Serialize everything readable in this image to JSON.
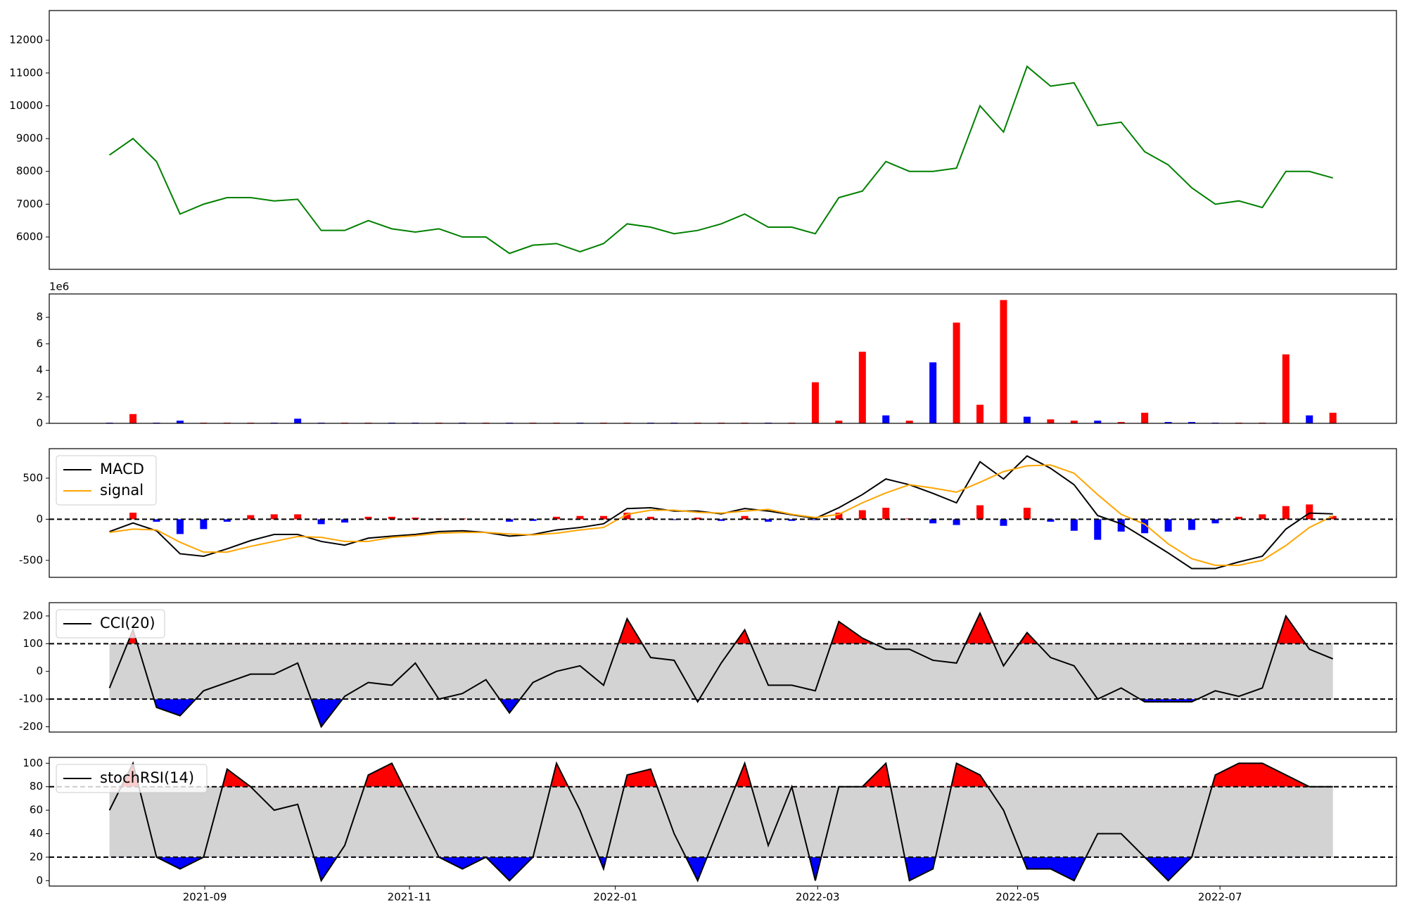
{
  "chart_data": [
    {
      "type": "line",
      "color": "green",
      "xlim": [
        -2.56,
        54.7
      ],
      "ylim": [
        5014,
        12904
      ],
      "yticks": [
        6000,
        7000,
        8000,
        9000,
        10000,
        11000,
        12000
      ],
      "values": [
        8500,
        9000,
        8300,
        6700,
        7000,
        7200,
        7200,
        7100,
        7150,
        6200,
        6200,
        6500,
        6250,
        6150,
        6250,
        6000,
        6000,
        5500,
        5750,
        5800,
        5550,
        5800,
        6400,
        6300,
        6100,
        6200,
        6400,
        6700,
        6300,
        6300,
        6100,
        7200,
        7400,
        8300,
        8000,
        8000,
        8100,
        10000,
        9200,
        11200,
        10600,
        10700,
        9400,
        9500,
        8600,
        8200,
        7500,
        7000,
        7100,
        6900,
        8000,
        8000,
        7800
      ]
    },
    {
      "type": "bar",
      "xlim": [
        -2.56,
        54.7
      ],
      "ylim": [
        0,
        9.76
      ],
      "yticks": [
        0,
        2,
        4,
        6,
        8
      ],
      "offset_label": "1e6",
      "values": [
        0.05,
        0.7,
        0.05,
        0.2,
        0.05,
        0.05,
        0.05,
        0.05,
        0.35,
        0.05,
        0.05,
        0.05,
        0.05,
        0.05,
        0.05,
        0.05,
        0.05,
        0.05,
        0.05,
        0.05,
        0.05,
        0.05,
        0.05,
        0.05,
        0.05,
        0.05,
        0.05,
        0.05,
        0.05,
        0.05,
        3.1,
        0.2,
        5.4,
        0.6,
        0.2,
        4.6,
        7.6,
        1.4,
        9.3,
        0.5,
        0.3,
        0.2,
        0.2,
        0.1,
        0.8,
        0.1,
        0.1,
        0.05,
        0.05,
        0.05,
        5.2,
        0.6,
        0.8
      ],
      "colors": [
        "blue",
        "red",
        "blue",
        "blue",
        "red",
        "red",
        "red",
        "blue",
        "blue",
        "blue",
        "red",
        "red",
        "blue",
        "blue",
        "red",
        "blue",
        "red",
        "blue",
        "red",
        "red",
        "blue",
        "red",
        "red",
        "blue",
        "blue",
        "red",
        "red",
        "red",
        "blue",
        "red",
        "red",
        "red",
        "red",
        "blue",
        "red",
        "blue",
        "red",
        "red",
        "red",
        "blue",
        "red",
        "red",
        "blue",
        "red",
        "red",
        "blue",
        "blue",
        "blue",
        "red",
        "red",
        "red",
        "blue",
        "red"
      ]
    },
    {
      "type": "line",
      "xlim": [
        -2.56,
        54.7
      ],
      "ylim": [
        -707,
        859
      ],
      "yticks": [
        -500,
        0,
        500
      ],
      "hlines": [
        0
      ],
      "legend": "upper left",
      "series": [
        {
          "name": "MACD",
          "color": "black",
          "values": [
            -150,
            -45,
            -140,
            -420,
            -450,
            -360,
            -260,
            -185,
            -185,
            -270,
            -315,
            -230,
            -205,
            -185,
            -150,
            -140,
            -160,
            -205,
            -185,
            -130,
            -100,
            -55,
            130,
            140,
            100,
            100,
            65,
            130,
            100,
            55,
            10,
            140,
            300,
            490,
            420,
            315,
            200,
            700,
            490,
            770,
            620,
            420,
            45,
            -55,
            -230,
            -410,
            -600,
            -600,
            -520,
            -450,
            -120,
            75,
            65
          ]
        },
        {
          "name": "signal",
          "color": "orange",
          "values": [
            -160,
            -120,
            -130,
            -280,
            -400,
            -400,
            -330,
            -270,
            -210,
            -220,
            -270,
            -270,
            -220,
            -200,
            -170,
            -160,
            -160,
            -180,
            -190,
            -170,
            -130,
            -100,
            60,
            110,
            110,
            85,
            75,
            100,
            120,
            60,
            20,
            60,
            200,
            320,
            420,
            380,
            330,
            450,
            580,
            650,
            660,
            560,
            300,
            60,
            -60,
            -300,
            -480,
            -560,
            -560,
            -500,
            -320,
            -100,
            40
          ]
        }
      ],
      "histogram": [
        0,
        80,
        -30,
        -180,
        -120,
        -30,
        50,
        60,
        60,
        -60,
        -40,
        30,
        30,
        20,
        10,
        10,
        0,
        -30,
        -20,
        30,
        40,
        40,
        80,
        30,
        -10,
        20,
        -20,
        40,
        -30,
        -20,
        -10,
        80,
        110,
        140,
        10,
        -50,
        -70,
        170,
        -80,
        140,
        -30,
        -140,
        -250,
        -150,
        -170,
        -150,
        -130,
        -50,
        30,
        60,
        160,
        180,
        40
      ],
      "pos_color": "red",
      "neg_color": "blue"
    },
    {
      "type": "line",
      "xlim": [
        -2.56,
        54.7
      ],
      "ylim": [
        -219,
        248
      ],
      "yticks": [
        -200,
        -100,
        0,
        100,
        200
      ],
      "hlines": [
        -100,
        100
      ],
      "bands": [
        -100,
        100
      ],
      "legend": "upper left",
      "band_fill": "#d3d3d3",
      "above_color": "red",
      "below_color": "blue",
      "series": [
        {
          "name": "CCI(20)",
          "color": "black",
          "values": [
            -60,
            150,
            -130,
            -160,
            -70,
            -40,
            -10,
            -10,
            30,
            -200,
            -90,
            -40,
            -50,
            30,
            -100,
            -80,
            -30,
            -150,
            -40,
            0,
            20,
            -50,
            190,
            50,
            40,
            -110,
            30,
            150,
            -50,
            -50,
            -70,
            180,
            120,
            80,
            80,
            40,
            30,
            210,
            20,
            140,
            50,
            20,
            -100,
            -60,
            -110,
            -110,
            -110,
            -70,
            -90,
            -60,
            200,
            80,
            45
          ]
        }
      ]
    },
    {
      "type": "line",
      "xlim": [
        -2.56,
        54.7
      ],
      "ylim": [
        -4.6,
        105
      ],
      "yticks": [
        0,
        20,
        40,
        60,
        80,
        100
      ],
      "hlines": [
        20,
        80
      ],
      "bands": [
        20,
        80
      ],
      "legend": "upper left",
      "band_fill": "#d3d3d3",
      "above_color": "red",
      "below_color": "blue",
      "xticks": [
        {
          "value": 4.05,
          "label": "2021-09"
        },
        {
          "value": 12.75,
          "label": "2021-11"
        },
        {
          "value": 21.5,
          "label": "2022-01"
        },
        {
          "value": 30.1,
          "label": "2022-03"
        },
        {
          "value": 38.6,
          "label": "2022-05"
        },
        {
          "value": 47.2,
          "label": "2022-07"
        }
      ],
      "series": [
        {
          "name": "stochRSI(14)",
          "color": "black",
          "values": [
            60,
            100,
            20,
            10,
            20,
            95,
            80,
            60,
            65,
            0,
            30,
            90,
            100,
            60,
            20,
            10,
            20,
            0,
            20,
            100,
            60,
            10,
            90,
            95,
            40,
            0,
            50,
            100,
            30,
            80,
            0,
            80,
            80,
            100,
            0,
            10,
            100,
            90,
            60,
            10,
            10,
            0,
            40,
            40,
            20,
            0,
            20,
            90,
            100,
            100,
            90,
            80,
            80
          ]
        }
      ]
    }
  ]
}
